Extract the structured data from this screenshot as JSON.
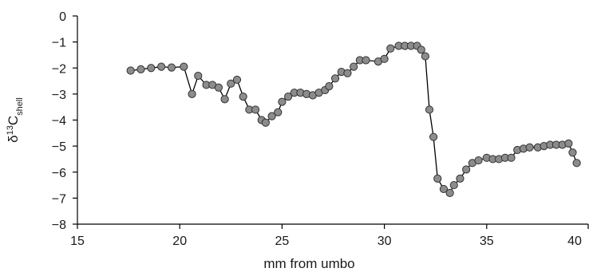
{
  "chart_data": {
    "type": "scatter",
    "title": "",
    "xlabel": "mm from umbo",
    "ylabel": {
      "prefix": "δ",
      "sup": "13",
      "main": "C",
      "sub": "shell"
    },
    "xlim": [
      15,
      40
    ],
    "ylim": [
      -8,
      0
    ],
    "xticks": [
      15,
      20,
      25,
      30,
      35,
      40
    ],
    "yticks": [
      0,
      -1,
      -2,
      -3,
      -4,
      -5,
      -6,
      -7,
      -8
    ],
    "grid": false,
    "legend": "none",
    "colors": {
      "marker_fill": "#8c8c8c",
      "marker_edge": "#333333",
      "line": "#000000",
      "axis": "#000000"
    },
    "series": [
      {
        "x": [
          17.6,
          18.1,
          18.6,
          19.1,
          19.6,
          20.2,
          20.6,
          20.9,
          21.3,
          21.6,
          21.9,
          22.2,
          22.5,
          22.8,
          23.1,
          23.4,
          23.7,
          24.0,
          24.2,
          24.5,
          24.8,
          25.0,
          25.3,
          25.6,
          25.9,
          26.2,
          26.5,
          26.8,
          27.1,
          27.3,
          27.6,
          27.9,
          28.2,
          28.5,
          28.8,
          29.1,
          29.7,
          30.0,
          30.3,
          30.7,
          31.0,
          31.3,
          31.6,
          31.8,
          32.0,
          32.2,
          32.4,
          32.6,
          32.9,
          33.2,
          33.4,
          33.7,
          34.0,
          34.3,
          34.6,
          35.0,
          35.3,
          35.6,
          35.9,
          36.2,
          36.5,
          36.8,
          37.1,
          37.5,
          37.8,
          38.1,
          38.4,
          38.7,
          39.0,
          39.2,
          39.4
        ],
        "y": [
          -2.1,
          -2.05,
          -2.0,
          -1.95,
          -1.98,
          -1.95,
          -3.0,
          -2.3,
          -2.65,
          -2.65,
          -2.75,
          -3.2,
          -2.6,
          -2.45,
          -3.1,
          -3.6,
          -3.6,
          -4.0,
          -4.1,
          -3.85,
          -3.7,
          -3.3,
          -3.1,
          -2.95,
          -2.95,
          -3.0,
          -3.05,
          -2.95,
          -2.85,
          -2.7,
          -2.4,
          -2.15,
          -2.2,
          -1.95,
          -1.7,
          -1.7,
          -1.75,
          -1.65,
          -1.25,
          -1.15,
          -1.15,
          -1.15,
          -1.15,
          -1.3,
          -1.55,
          -3.6,
          -4.65,
          -6.25,
          -6.65,
          -6.8,
          -6.5,
          -6.25,
          -5.9,
          -5.65,
          -5.55,
          -5.45,
          -5.5,
          -5.5,
          -5.45,
          -5.45,
          -5.15,
          -5.1,
          -5.05,
          -5.05,
          -5.0,
          -4.95,
          -4.95,
          -4.95,
          -4.9,
          -5.25,
          -5.65
        ]
      }
    ]
  }
}
